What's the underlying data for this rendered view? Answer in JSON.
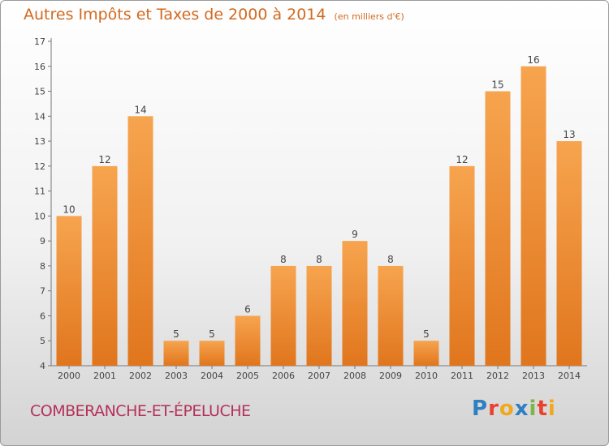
{
  "header": {
    "title": "Autres Impôts et Taxes de 2000 à 2014",
    "unit": "(en milliers d'€)"
  },
  "footer": {
    "commune": "COMBERANCHE-ET-ÉPELUCHE",
    "logo_text": "Proxiti"
  },
  "colors": {
    "bar_top": "#f7a44f",
    "bar_bottom": "#e0761d",
    "title": "#d2691e",
    "commune": "#b5305a"
  },
  "chart_data": {
    "type": "bar",
    "title": "Autres Impôts et Taxes de 2000 à 2014",
    "subtitle": "(en milliers d'€)",
    "categories": [
      "2000",
      "2001",
      "2002",
      "2003",
      "2004",
      "2005",
      "2006",
      "2007",
      "2008",
      "2009",
      "2010",
      "2011",
      "2012",
      "2013",
      "2014"
    ],
    "values": [
      10,
      12,
      14,
      5,
      5,
      6,
      8,
      8,
      9,
      8,
      5,
      12,
      15,
      16,
      13
    ],
    "ylim": [
      4,
      17
    ],
    "yticks": [
      4,
      5,
      6,
      7,
      8,
      9,
      10,
      11,
      12,
      13,
      14,
      15,
      16,
      17
    ],
    "grid": false,
    "legend": "none"
  }
}
